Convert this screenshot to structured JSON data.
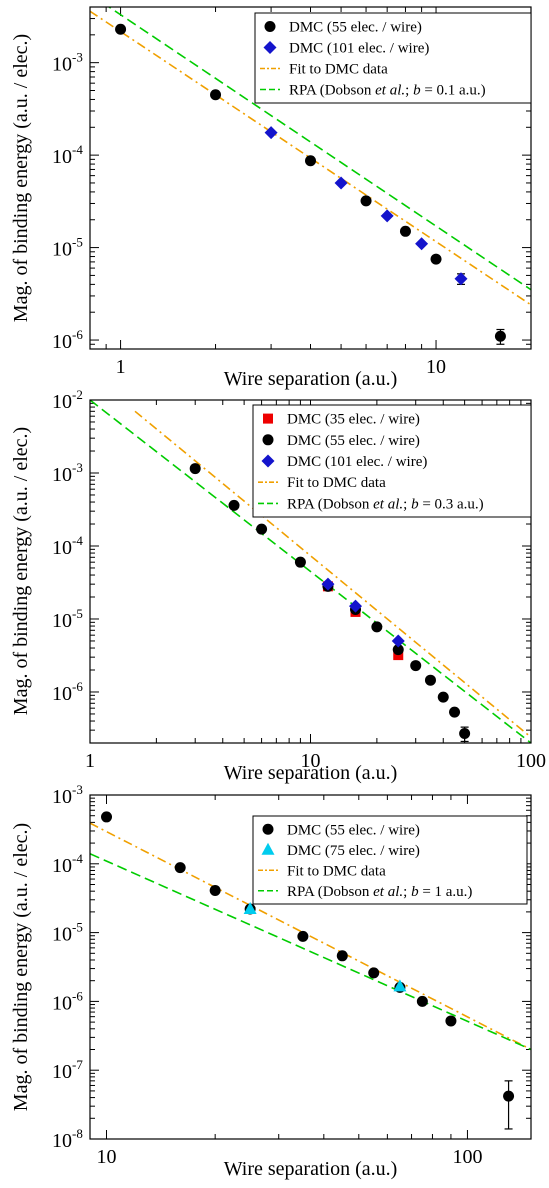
{
  "chart_data": [
    {
      "type": "scatter",
      "xlabel": "Wire separation (a.u.)",
      "ylabel": "Mag. of binding energy (a.u. / elec.)",
      "xscale": "log",
      "yscale": "log",
      "xlim": [
        0.8,
        20
      ],
      "ylim": [
        8e-07,
        0.004
      ],
      "legend_position": "top-right",
      "xticks": [
        {
          "v": 1,
          "label": "1"
        },
        {
          "v": 10,
          "label": "10"
        }
      ],
      "yticks": [
        {
          "v": 1e-06,
          "base": "10",
          "exp": "-6"
        },
        {
          "v": 1e-05,
          "base": "10",
          "exp": "-5"
        },
        {
          "v": 0.0001,
          "base": "10",
          "exp": "-4"
        },
        {
          "v": 0.001,
          "base": "10",
          "exp": "-3"
        }
      ],
      "series": [
        {
          "name": "DMC (55 elec. / wire)",
          "kind": "points",
          "marker": "circle",
          "color": "#000000",
          "x": [
            1,
            2,
            4,
            6,
            8,
            10,
            16
          ],
          "y": [
            0.0023,
            0.00045,
            8.7e-05,
            3.2e-05,
            1.5e-05,
            7.5e-06,
            1.1e-06
          ],
          "yerr": [
            0,
            0,
            0,
            0,
            0,
            0,
            2e-07
          ]
        },
        {
          "name": "DMC (101 elec. / wire)",
          "kind": "points",
          "marker": "diamond",
          "color": "#1414cc",
          "x": [
            3,
            5,
            7,
            9,
            12
          ],
          "y": [
            0.000175,
            5e-05,
            2.2e-05,
            1.1e-05,
            4.6e-06
          ],
          "yerr": [
            0,
            0,
            0,
            0,
            6e-07
          ]
        },
        {
          "name": "Fit to DMC data",
          "kind": "line",
          "dash": "dashdot",
          "color": "#f0a000",
          "x": [
            0.8,
            20
          ],
          "y": [
            0.0036,
            2.4e-06
          ]
        },
        {
          "name_parts": [
            "RPA (Dobson ",
            "et al.",
            "; ",
            "b",
            " = 0.1 a.u.)"
          ],
          "kind": "line",
          "dash": "dashed",
          "color": "#00cc00",
          "x": [
            0.8,
            20
          ],
          "y": [
            0.0055,
            3.5e-06
          ]
        }
      ]
    },
    {
      "type": "scatter",
      "xlabel": "Wire separation (a.u.)",
      "ylabel": "Mag. of binding energy (a.u. / elec.)",
      "xscale": "log",
      "yscale": "log",
      "xlim": [
        1,
        100
      ],
      "ylim": [
        2e-07,
        0.01
      ],
      "legend_position": "top-right",
      "xticks": [
        {
          "v": 1,
          "label": "1"
        },
        {
          "v": 10,
          "label": "10"
        },
        {
          "v": 100,
          "label": "100"
        }
      ],
      "yticks": [
        {
          "v": 1e-06,
          "base": "10",
          "exp": "-6"
        },
        {
          "v": 1e-05,
          "base": "10",
          "exp": "-5"
        },
        {
          "v": 0.0001,
          "base": "10",
          "exp": "-4"
        },
        {
          "v": 0.001,
          "base": "10",
          "exp": "-3"
        },
        {
          "v": 0.01,
          "base": "10",
          "exp": "-2"
        }
      ],
      "series": [
        {
          "name": "DMC (35 elec. / wire)",
          "kind": "points",
          "marker": "square",
          "color": "#ee0000",
          "x": [
            12,
            16,
            25
          ],
          "y": [
            2.8e-05,
            1.25e-05,
            3.2e-06
          ],
          "yerr": [
            0,
            0,
            0
          ]
        },
        {
          "name": "DMC (55 elec. / wire)",
          "kind": "points",
          "marker": "circle",
          "color": "#000000",
          "x": [
            3,
            4.5,
            6,
            9,
            12,
            16,
            20,
            25,
            30,
            35,
            40,
            45,
            50
          ],
          "y": [
            0.00115,
            0.00036,
            0.00017,
            6e-05,
            2.8e-05,
            1.35e-05,
            7.8e-06,
            3.8e-06,
            2.3e-06,
            1.45e-06,
            8.5e-07,
            5.3e-07,
            2.7e-07
          ],
          "yerr": [
            0,
            0,
            0,
            0,
            0,
            0,
            0,
            0,
            0,
            0,
            0,
            0,
            6e-08
          ]
        },
        {
          "name": "DMC (101 elec. / wire)",
          "kind": "points",
          "marker": "diamond",
          "color": "#1414cc",
          "x": [
            12,
            16,
            25
          ],
          "y": [
            3e-05,
            1.5e-05,
            5e-06
          ],
          "yerr": [
            0,
            0,
            0
          ]
        },
        {
          "name": "Fit to DMC data",
          "kind": "line",
          "dash": "dashdot",
          "color": "#f0a000",
          "x": [
            1.6,
            100
          ],
          "y": [
            0.007,
            2.4e-07
          ]
        },
        {
          "name_parts": [
            "RPA (Dobson ",
            "et al.",
            "; ",
            "b",
            " = 0.3 a.u.)"
          ],
          "kind": "line",
          "dash": "dashed",
          "color": "#00cc00",
          "x": [
            1,
            100
          ],
          "y": [
            0.01,
            2e-07
          ]
        }
      ]
    },
    {
      "type": "scatter",
      "xlabel": "Wire separation (a.u.)",
      "ylabel": "Mag. of binding energy (a.u. / elec.)",
      "xscale": "log",
      "yscale": "log",
      "xlim": [
        9,
        150
      ],
      "ylim": [
        1e-08,
        0.001
      ],
      "legend_position": "top-right",
      "xticks": [
        {
          "v": 10,
          "label": "10"
        },
        {
          "v": 100,
          "label": "100"
        }
      ],
      "yticks": [
        {
          "v": 1e-08,
          "base": "10",
          "exp": "-8"
        },
        {
          "v": 1e-07,
          "base": "10",
          "exp": "-7"
        },
        {
          "v": 1e-06,
          "base": "10",
          "exp": "-6"
        },
        {
          "v": 1e-05,
          "base": "10",
          "exp": "-5"
        },
        {
          "v": 0.0001,
          "base": "10",
          "exp": "-4"
        },
        {
          "v": 0.001,
          "base": "10",
          "exp": "-3"
        }
      ],
      "series": [
        {
          "name": "DMC (55 elec. / wire)",
          "kind": "points",
          "marker": "circle",
          "color": "#000000",
          "x": [
            10,
            16,
            20,
            25,
            35,
            45,
            55,
            65,
            75,
            90,
            130
          ],
          "y": [
            0.00048,
            8.8e-05,
            4.1e-05,
            2.2e-05,
            8.8e-06,
            4.6e-06,
            2.6e-06,
            1.6e-06,
            1e-06,
            5.2e-07,
            4.2e-08
          ],
          "yerr": [
            0,
            0,
            0,
            0,
            0,
            0,
            0,
            0,
            0,
            0,
            2.8e-08
          ]
        },
        {
          "name": "DMC (75 elec. / wire)",
          "kind": "points",
          "marker": "triangle",
          "color": "#00ccee",
          "x": [
            25,
            65
          ],
          "y": [
            2.2e-05,
            1.65e-06
          ],
          "yerr": [
            0,
            0
          ]
        },
        {
          "name": "Fit to DMC data",
          "kind": "line",
          "dash": "dashdot",
          "color": "#f0a000",
          "x": [
            9,
            150
          ],
          "y": [
            0.00039,
            2e-07
          ]
        },
        {
          "name_parts": [
            "RPA (Dobson ",
            "et al.",
            "; ",
            "b",
            " = 1 a.u.)"
          ],
          "kind": "line",
          "dash": "dashed",
          "color": "#00cc00",
          "x": [
            9,
            150
          ],
          "y": [
            0.00014,
            2e-07
          ]
        }
      ]
    }
  ]
}
